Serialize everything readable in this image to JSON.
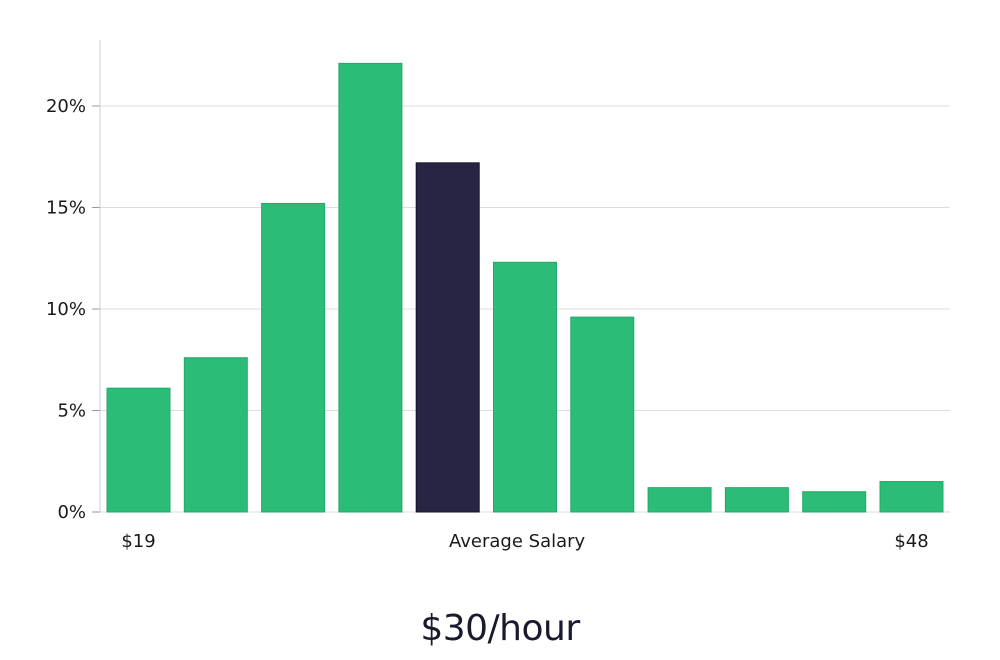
{
  "chart_data": {
    "type": "bar",
    "categories": [
      "$19",
      "",
      "",
      "",
      "Average Salary",
      "",
      "",
      "",
      "",
      "",
      "$48"
    ],
    "values": [
      6.1,
      7.6,
      15.2,
      22.1,
      17.2,
      12.3,
      9.6,
      1.2,
      1.2,
      1.0,
      1.5
    ],
    "highlight_index": 4,
    "ylim": [
      0,
      23
    ],
    "yticks": [
      0,
      5,
      10,
      15,
      20
    ],
    "ytick_labels": [
      "0%",
      "5%",
      "10%",
      "15%",
      "20%"
    ],
    "grid": true,
    "colors": {
      "bar": "#2bbd77",
      "highlight": "#272444",
      "grid": "#dddddd",
      "axis": "#cccccc"
    }
  },
  "headline": "$30/hour"
}
